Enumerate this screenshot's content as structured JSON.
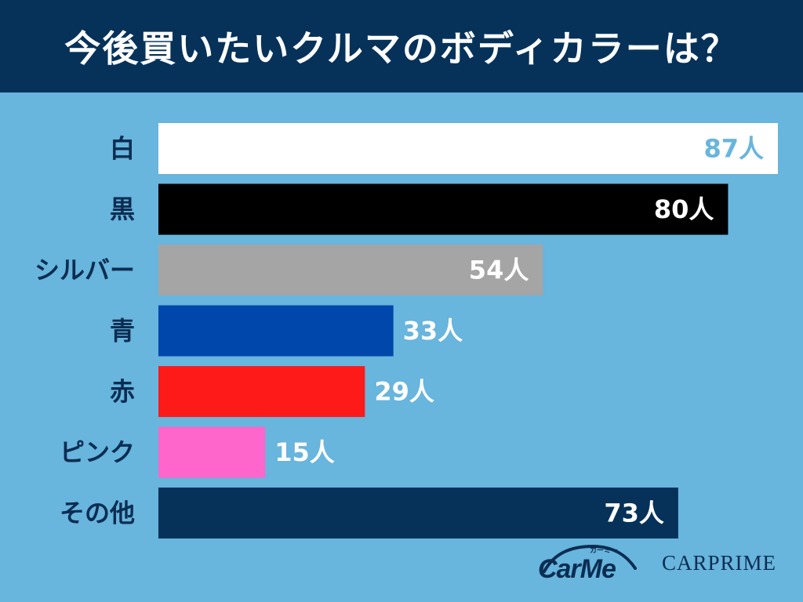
{
  "colors": {
    "background": "#68b5dd",
    "title_bg": "#06325a",
    "label_text": "#0b2d52"
  },
  "chart_data": {
    "type": "bar",
    "orientation": "horizontal",
    "title": "今後買いたいクルマのボディカラーは？",
    "unit": "人",
    "xlim": [
      0,
      87
    ],
    "categories": [
      "白",
      "黒",
      "シルバー",
      "青",
      "赤",
      "ピンク",
      "その他"
    ],
    "values": [
      87,
      80,
      54,
      33,
      29,
      15,
      73
    ],
    "value_labels": [
      "87人",
      "80人",
      "54人",
      "33人",
      "29人",
      "15人",
      "73人"
    ],
    "bar_colors": [
      "#ffffff",
      "#000000",
      "#a5a5a5",
      "#0047ab",
      "#ff1a1a",
      "#ff66cc",
      "#06325a"
    ],
    "value_label_colors": [
      "#68b5dd",
      "#ffffff",
      "#ffffff",
      "#ffffff",
      "#ffffff",
      "#ffffff",
      "#ffffff"
    ],
    "value_label_position": [
      "inside",
      "inside",
      "inside",
      "outside",
      "outside",
      "outside",
      "inside"
    ]
  },
  "logos": {
    "carme_sub": "カーミー",
    "carme_text": "CarMe",
    "carprime_text": "CARPRIME"
  }
}
